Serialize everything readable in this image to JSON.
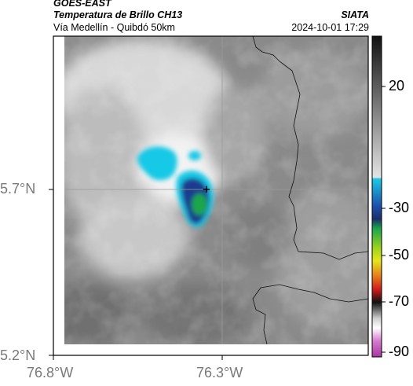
{
  "header": {
    "satellite": "GOES-EAST",
    "product": "Temperatura de Brillo CH13",
    "route": "Vía Medellín - Quibdó 50km",
    "agency": "SIATA",
    "timestamp": "2024-10-01 17:29"
  },
  "map": {
    "lat_ticks": [
      "5.7°N",
      "5.2°N"
    ],
    "lon_ticks": [
      "76.8°W",
      "76.3°W"
    ],
    "marker": "+"
  },
  "colorbar": {
    "tick_labels": [
      "20",
      "-30",
      "-50",
      "-70",
      "-90"
    ],
    "colors": {
      "warm_gray_top": "#1a1a1a",
      "warm_gray_bottom": "#e8e8e8",
      "cyan": "#19c9e6",
      "blue": "#1b4fb0",
      "green": "#1aa64a",
      "yellow": "#e6e619",
      "red": "#d11a1a",
      "black": "#111111",
      "magenta": "#c23fb8"
    }
  }
}
